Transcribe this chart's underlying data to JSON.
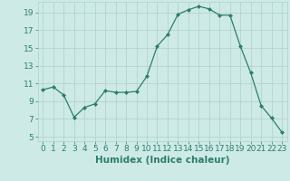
{
  "x": [
    0,
    1,
    2,
    3,
    4,
    5,
    6,
    7,
    8,
    9,
    10,
    11,
    12,
    13,
    14,
    15,
    16,
    17,
    18,
    19,
    20,
    21,
    22,
    23
  ],
  "y": [
    10.3,
    10.6,
    9.7,
    7.2,
    8.3,
    8.7,
    10.2,
    10.0,
    10.0,
    10.1,
    11.8,
    15.2,
    16.5,
    18.8,
    19.3,
    19.7,
    19.4,
    18.7,
    18.7,
    15.2,
    12.2,
    8.5,
    7.1,
    5.5
  ],
  "line_color": "#2d7d6e",
  "marker": "D",
  "marker_size": 2.0,
  "background_color": "#cdeae6",
  "grid_color": "#aecfcb",
  "xlabel": "Humidex (Indice chaleur)",
  "xlim": [
    -0.5,
    23.5
  ],
  "ylim": [
    4.5,
    20.2
  ],
  "yticks": [
    5,
    7,
    9,
    11,
    13,
    15,
    17,
    19
  ],
  "xticks": [
    0,
    1,
    2,
    3,
    4,
    5,
    6,
    7,
    8,
    9,
    10,
    11,
    12,
    13,
    14,
    15,
    16,
    17,
    18,
    19,
    20,
    21,
    22,
    23
  ],
  "tick_color": "#2d7d6e",
  "label_color": "#2d7d6e",
  "xlabel_fontsize": 7.5,
  "tick_fontsize": 6.5
}
